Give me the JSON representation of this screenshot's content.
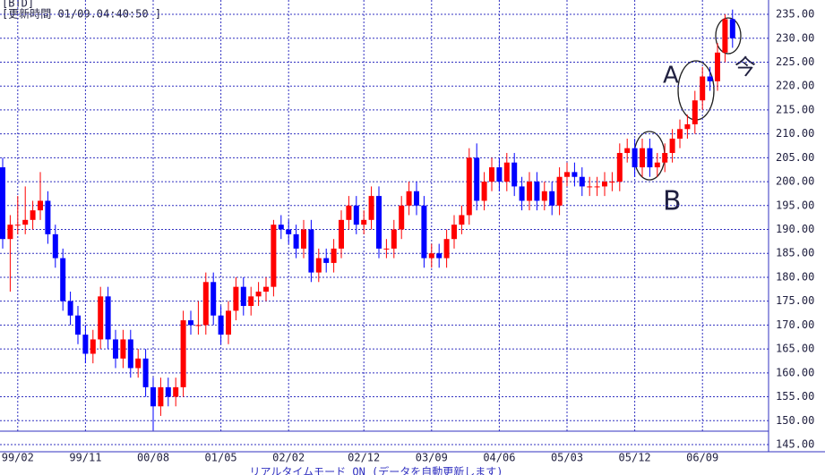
{
  "chart_data": {
    "type": "candlestick",
    "header": "[BTD]",
    "update_time": "[更新時間 01/09.04:40:50 ]",
    "footer": "リアルタイムモード ON (データを自動更新します)",
    "annotations": [
      "A",
      "B",
      "今"
    ],
    "up_color": "#ff0000",
    "down_color": "#0000ff",
    "grid": true,
    "categories": [
      null,
      null,
      "99/02",
      null,
      null,
      null,
      null,
      null,
      null,
      null,
      null,
      "99/11",
      null,
      null,
      null,
      null,
      null,
      null,
      null,
      null,
      "00/08",
      null,
      null,
      null,
      null,
      null,
      null,
      null,
      null,
      "01/05",
      null,
      null,
      null,
      null,
      null,
      null,
      null,
      null,
      "02/02",
      null,
      null,
      null,
      null,
      null,
      null,
      null,
      null,
      null,
      "02/12",
      null,
      null,
      null,
      null,
      null,
      null,
      null,
      null,
      "03/09",
      null,
      null,
      null,
      null,
      null,
      null,
      null,
      null,
      "04/06",
      null,
      null,
      null,
      null,
      null,
      null,
      null,
      null,
      "05/03",
      null,
      null,
      null,
      null,
      null,
      null,
      null,
      null,
      "05/12",
      null,
      null,
      null,
      null,
      null,
      null,
      null,
      null,
      "06/09",
      null,
      null,
      null,
      null
    ],
    "open": [
      203,
      188,
      191,
      191,
      192,
      194,
      196,
      189,
      184,
      175,
      172,
      168,
      164,
      167,
      176,
      167,
      163,
      167,
      161,
      163,
      157,
      153,
      157,
      155,
      157,
      171,
      170,
      170,
      179,
      172,
      168,
      173,
      178,
      174,
      176,
      177,
      178,
      191,
      190,
      189,
      186,
      190,
      181,
      184,
      183,
      186,
      192,
      195,
      191,
      192,
      197,
      186,
      186,
      190,
      195,
      198,
      195,
      184,
      185,
      184,
      188,
      191,
      193,
      205,
      196,
      200,
      203,
      200,
      204,
      199,
      196,
      200,
      196,
      198,
      195,
      201,
      202,
      201,
      199,
      199,
      199,
      200,
      200,
      206,
      207,
      203,
      207,
      203,
      204,
      206,
      209,
      211,
      212,
      217,
      222,
      221,
      227,
      234
    ],
    "high": [
      205,
      193,
      197,
      199,
      196,
      202,
      198,
      191,
      186,
      177,
      174,
      170,
      169,
      178,
      178,
      169,
      169,
      169,
      165,
      165,
      159,
      159,
      159,
      159,
      173,
      173,
      175,
      181,
      181,
      174,
      175,
      180,
      180,
      178,
      179,
      180,
      192,
      193,
      192,
      191,
      192,
      192,
      186,
      186,
      188,
      194,
      197,
      197,
      194,
      199,
      199,
      188,
      192,
      197,
      200,
      200,
      197,
      187,
      187,
      190,
      193,
      195,
      207,
      208,
      202,
      205,
      205,
      206,
      206,
      201,
      202,
      202,
      200,
      200,
      203,
      204,
      204,
      203,
      201,
      201,
      202,
      202,
      208,
      209,
      209,
      209,
      209,
      206,
      208,
      211,
      213,
      214,
      219,
      224,
      224,
      229,
      235,
      236
    ],
    "low": [
      186,
      177,
      189,
      189,
      190,
      192,
      187,
      182,
      173,
      170,
      166,
      162,
      162,
      165,
      165,
      161,
      161,
      159,
      159,
      155,
      148,
      151,
      153,
      153,
      155,
      168,
      168,
      168,
      170,
      166,
      166,
      171,
      172,
      172,
      174,
      175,
      176,
      188,
      187,
      184,
      184,
      179,
      179,
      181,
      181,
      184,
      190,
      189,
      189,
      190,
      184,
      184,
      184,
      188,
      193,
      193,
      182,
      182,
      182,
      182,
      186,
      189,
      191,
      194,
      194,
      198,
      198,
      198,
      197,
      194,
      194,
      194,
      194,
      193,
      193,
      199,
      199,
      197,
      197,
      197,
      197,
      198,
      198,
      204,
      201,
      201,
      201,
      201,
      202,
      204,
      207,
      209,
      210,
      215,
      219,
      219,
      225,
      228
    ],
    "close": [
      188,
      191,
      191,
      192,
      194,
      196,
      189,
      184,
      175,
      172,
      168,
      164,
      167,
      176,
      167,
      163,
      167,
      161,
      163,
      157,
      153,
      157,
      155,
      157,
      171,
      170,
      170,
      179,
      172,
      168,
      173,
      178,
      174,
      176,
      177,
      178,
      191,
      190,
      189,
      186,
      190,
      181,
      184,
      183,
      186,
      192,
      195,
      191,
      192,
      197,
      186,
      186,
      190,
      195,
      198,
      195,
      184,
      185,
      184,
      188,
      191,
      193,
      205,
      196,
      200,
      203,
      200,
      204,
      199,
      196,
      200,
      196,
      198,
      195,
      201,
      202,
      201,
      199,
      199,
      199,
      200,
      200,
      206,
      207,
      203,
      207,
      203,
      204,
      206,
      209,
      211,
      212,
      217,
      222,
      221,
      227,
      234,
      230
    ],
    "ylim": [
      145,
      238
    ],
    "yticks": [
      {
        "value": 145,
        "label": "145.00"
      },
      {
        "value": 150,
        "label": "150.00"
      },
      {
        "value": 155,
        "label": "155.00"
      },
      {
        "value": 160,
        "label": "160.00"
      },
      {
        "value": 165,
        "label": "165.00"
      },
      {
        "value": 170,
        "label": "170.00"
      },
      {
        "value": 175,
        "label": "175.00"
      },
      {
        "value": 180,
        "label": "180.00"
      },
      {
        "value": 185,
        "label": "185.00"
      },
      {
        "value": 190,
        "label": "190.00"
      },
      {
        "value": 195,
        "label": "195.00"
      },
      {
        "value": 200,
        "label": "200.00"
      },
      {
        "value": 205,
        "label": "205.00"
      },
      {
        "value": 210,
        "label": "210.00"
      },
      {
        "value": 215,
        "label": "215.00"
      },
      {
        "value": 220,
        "label": "220.00"
      },
      {
        "value": 225,
        "label": "225.00"
      },
      {
        "value": 230,
        "label": "230.00"
      },
      {
        "value": 235,
        "label": "235.00"
      }
    ]
  }
}
